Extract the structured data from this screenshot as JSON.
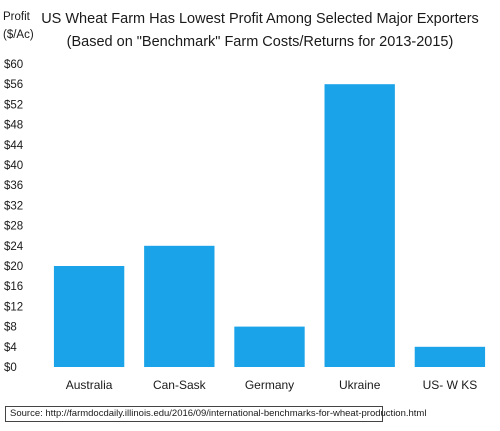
{
  "chart_data": {
    "type": "bar",
    "title_lines": [
      "US Wheat Farm Has Lowest Profit Among Selected Major Exporters",
      "(Based on \"Benchmark\" Farm Costs/Returns for 2013-2015)"
    ],
    "ylabel_lines": [
      "Profit",
      "($/Ac)"
    ],
    "categories": [
      "Australia",
      "Can-Sask",
      "Germany",
      "Ukraine",
      "US- W KS"
    ],
    "values": [
      20,
      24,
      8,
      56,
      4
    ],
    "ylim": [
      0,
      60
    ],
    "yticks": [
      "$0",
      "$4",
      "$8",
      "$12",
      "$16",
      "$20",
      "$24",
      "$28",
      "$32",
      "$36",
      "$40",
      "$44",
      "$48",
      "$52",
      "$56",
      "$60"
    ],
    "ytick_values": [
      0,
      4,
      8,
      12,
      16,
      20,
      24,
      28,
      32,
      36,
      40,
      44,
      48,
      52,
      56,
      60
    ],
    "bar_color": "#1aa3e8",
    "grid": false,
    "legend": "none"
  },
  "source": {
    "text": "Source:  http://farmdocdaily.illinois.edu/2016/09/international-benchmarks-for-wheat-production.html"
  }
}
